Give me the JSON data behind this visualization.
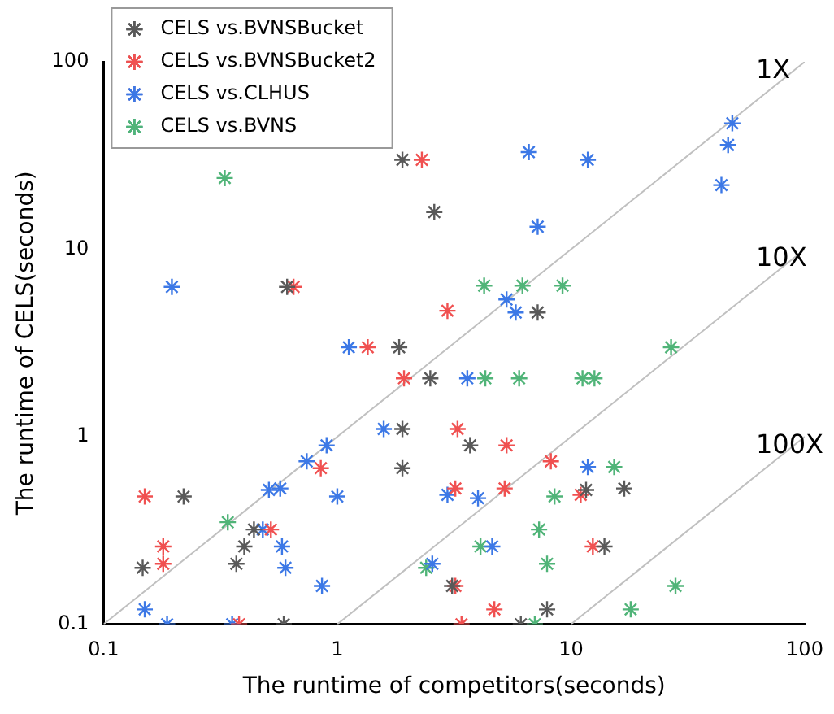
{
  "chart_data": {
    "type": "scatter",
    "xlabel": "The runtime of competitors(seconds)",
    "ylabel": "The runtime of CELS(seconds)",
    "log": "xy",
    "xlim": [
      0.1,
      100
    ],
    "ylim": [
      0.1,
      100
    ],
    "xticks": [
      0.1,
      1,
      10,
      100
    ],
    "yticks": [
      0.1,
      1,
      10,
      100
    ],
    "grid": false,
    "legend": "top left",
    "marker": "cross",
    "series": [
      {
        "name": "CELS vs.BVNSBucket",
        "color": "#595959",
        "x": [
          1.9,
          2.6,
          0.61,
          1.84,
          2.5,
          1.9,
          1.9,
          0.22,
          0.4,
          0.147,
          0.37,
          0.44,
          0.59,
          3.1,
          3.7,
          11.6,
          16.9,
          13.9,
          7.9,
          6.1,
          7.2
        ],
        "values": [
          30,
          15.8,
          6.3,
          3.0,
          2.05,
          1.1,
          0.68,
          0.48,
          0.26,
          0.2,
          0.21,
          0.32,
          0.1,
          0.16,
          0.9,
          0.52,
          0.53,
          0.26,
          0.12,
          0.1,
          4.6
        ]
      },
      {
        "name": "CELS vs.BVNSBucket2",
        "color": "#f05050",
        "x": [
          2.3,
          0.65,
          2.96,
          1.35,
          1.93,
          3.27,
          0.85,
          0.15,
          0.52,
          0.18,
          0.18,
          0.38,
          3.2,
          3.2,
          3.4,
          5.3,
          8.2,
          5.2,
          11,
          12.4,
          4.7
        ],
        "values": [
          30,
          6.3,
          4.7,
          3.0,
          2.05,
          1.1,
          0.68,
          0.48,
          0.32,
          0.26,
          0.21,
          0.1,
          0.16,
          0.53,
          0.1,
          0.9,
          0.74,
          0.53,
          0.49,
          0.26,
          0.12
        ]
      },
      {
        "name": "CELS vs.CLHUS",
        "color": "#3c78e6",
        "x": [
          0.196,
          49,
          47,
          44,
          6.6,
          11.8,
          7.2,
          5.3,
          5.8,
          1.12,
          1.58,
          3.6,
          0.9,
          0.74,
          0.57,
          0.51,
          1.0,
          0.48,
          0.58,
          0.6,
          0.86,
          0.15,
          0.187,
          0.355,
          2.55,
          2.96,
          4.0,
          4.6,
          11.8
        ],
        "values": [
          6.3,
          47,
          36,
          22,
          33,
          30,
          13.2,
          5.4,
          4.6,
          3.0,
          1.1,
          2.05,
          0.9,
          0.74,
          0.53,
          0.52,
          0.48,
          0.32,
          0.26,
          0.2,
          0.16,
          0.12,
          0.1,
          0.1,
          0.21,
          0.49,
          0.47,
          0.26,
          0.69
        ]
      },
      {
        "name": "CELS vs.BVNS",
        "color": "#50b478",
        "x": [
          0.33,
          4.25,
          6.2,
          9.2,
          26.8,
          4.3,
          6.0,
          11.2,
          12.6,
          15.3,
          8.5,
          7.3,
          4.1,
          7.9,
          28,
          18,
          7,
          0.34,
          2.4
        ],
        "values": [
          24,
          6.4,
          6.4,
          6.4,
          3.0,
          2.05,
          2.05,
          2.05,
          2.05,
          0.69,
          0.48,
          0.32,
          0.26,
          0.21,
          0.16,
          0.12,
          0.1,
          0.35,
          0.2
        ]
      },
      {
        "name": "1X",
        "type": "line",
        "color": "#c0c0c0",
        "marker": "none",
        "x": [
          0.1,
          100
        ],
        "values": [
          0.1,
          100
        ]
      },
      {
        "name": "10X",
        "type": "line",
        "color": "#c0c0c0",
        "marker": "none",
        "x": [
          1,
          100
        ],
        "values": [
          0.1,
          10
        ]
      },
      {
        "name": "100X",
        "type": "line",
        "color": "#c0c0c0",
        "marker": "none",
        "x": [
          10,
          100
        ],
        "values": [
          0.1,
          1
        ]
      }
    ]
  }
}
